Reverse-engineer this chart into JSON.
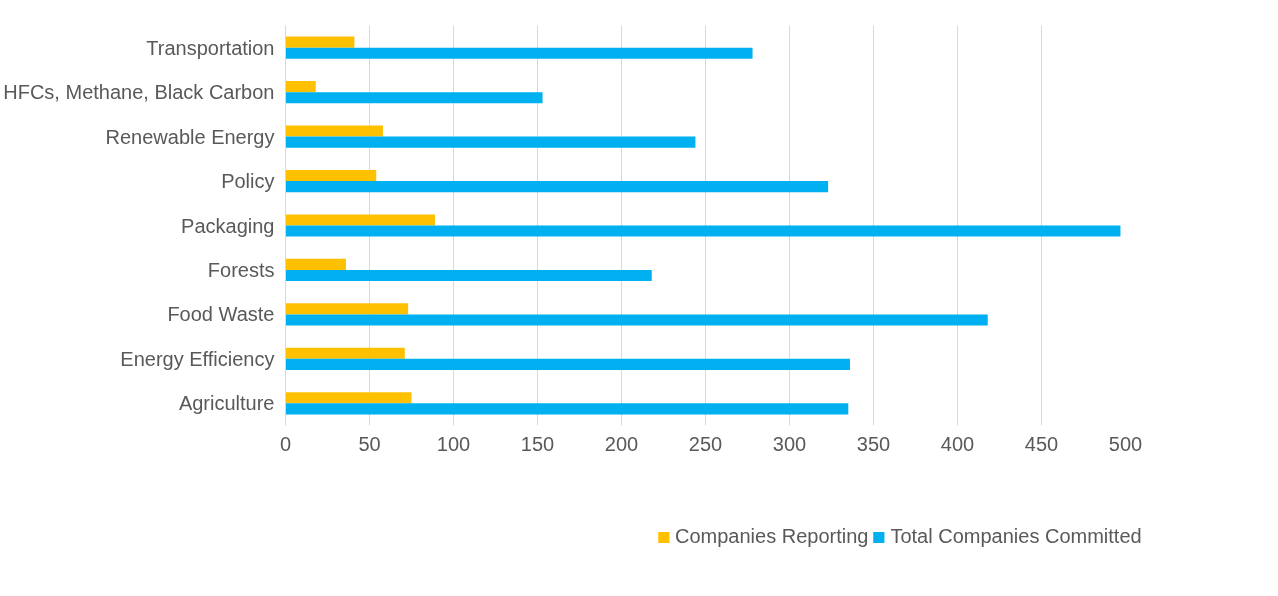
{
  "chart_data": {
    "type": "bar",
    "orientation": "horizontal",
    "categories": [
      "Transportation",
      "HFCs, Methane, Black Carbon",
      "Renewable Energy",
      "Policy",
      "Packaging",
      "Forests",
      "Food Waste",
      "Energy Efficiency",
      "Agriculture"
    ],
    "series": [
      {
        "name": "Companies Reporting",
        "color": "#ffc000",
        "values": [
          41,
          18,
          58,
          54,
          89,
          36,
          73,
          71,
          75
        ]
      },
      {
        "name": "Total Companies Committed",
        "color": "#00b0f0",
        "values": [
          278,
          153,
          244,
          323,
          497,
          218,
          418,
          336,
          335
        ]
      }
    ],
    "xlim": [
      0,
      500
    ],
    "xticks": [
      0,
      50,
      100,
      150,
      200,
      250,
      300,
      350,
      400,
      450,
      500
    ],
    "grid": "x",
    "legend": "bottom"
  }
}
